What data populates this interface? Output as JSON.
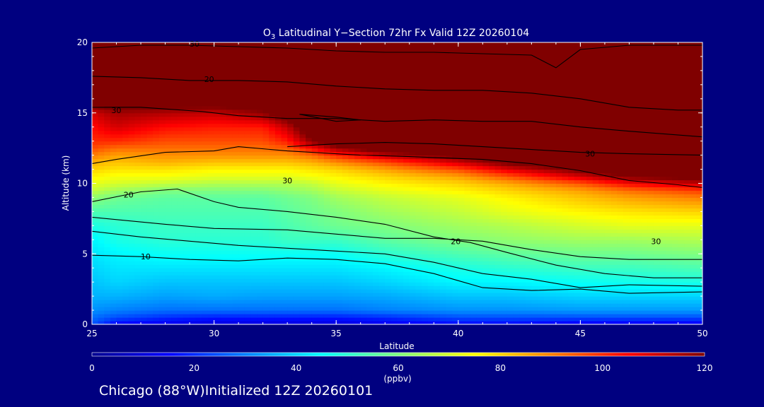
{
  "chart_data": {
    "type": "heatmap",
    "title": "Latitudinal Y−Section 72hr  Fx Valid 12Z 20260104",
    "title_species": "O",
    "title_subscript": "3",
    "xlabel": "Latitude",
    "ylabel": "Altitude (km)",
    "xlim": [
      25,
      50
    ],
    "ylim": [
      0,
      20
    ],
    "x_ticks": [
      25,
      30,
      35,
      40,
      45,
      50
    ],
    "y_ticks": [
      0,
      5,
      10,
      15,
      20
    ],
    "colorbar": {
      "range": [
        0,
        120
      ],
      "ticks": [
        0,
        20,
        40,
        60,
        80,
        100,
        120
      ],
      "unit": "(ppbv)",
      "colormap": "rainbow: dark blue → cyan → green → yellow → red → dark red"
    },
    "grid": false,
    "field": {
      "lat": [
        25,
        26,
        28,
        30,
        32,
        33,
        34,
        35,
        37,
        40,
        42,
        45,
        47,
        50
      ],
      "alt": [
        0,
        0.5,
        1,
        2,
        3,
        4,
        5,
        6,
        7,
        8,
        9,
        9.5,
        10,
        10.5,
        11,
        11.5,
        12,
        12.5,
        13,
        14,
        15,
        16,
        20
      ],
      "values_ppbv": [
        [
          25,
          14,
          12,
          10,
          10,
          10,
          10,
          10,
          12,
          15,
          15,
          12,
          12,
          12
        ],
        [
          28,
          24,
          20,
          18,
          18,
          18,
          18,
          18,
          20,
          24,
          24,
          24,
          24,
          24
        ],
        [
          32,
          30,
          28,
          28,
          28,
          28,
          28,
          28,
          30,
          32,
          32,
          33,
          33,
          33
        ],
        [
          36,
          36,
          34,
          35,
          34,
          34,
          34,
          34,
          35,
          38,
          38,
          40,
          40,
          40
        ],
        [
          38,
          40,
          38,
          38,
          38,
          38,
          38,
          38,
          40,
          44,
          44,
          46,
          47,
          48
        ],
        [
          40,
          42,
          42,
          42,
          42,
          42,
          42,
          42,
          44,
          48,
          50,
          52,
          52,
          54
        ],
        [
          42,
          44,
          46,
          46,
          46,
          46,
          46,
          46,
          50,
          54,
          56,
          58,
          58,
          60
        ],
        [
          44,
          48,
          50,
          50,
          50,
          52,
          52,
          52,
          56,
          60,
          62,
          64,
          64,
          66
        ],
        [
          48,
          50,
          52,
          52,
          52,
          54,
          56,
          58,
          60,
          64,
          66,
          70,
          72,
          72
        ],
        [
          54,
          54,
          54,
          54,
          54,
          56,
          58,
          60,
          64,
          68,
          72,
          76,
          78,
          80
        ],
        [
          62,
          58,
          56,
          56,
          56,
          58,
          60,
          64,
          68,
          72,
          76,
          82,
          86,
          90
        ],
        [
          68,
          64,
          60,
          60,
          60,
          62,
          64,
          68,
          72,
          76,
          80,
          86,
          92,
          98
        ],
        [
          72,
          70,
          68,
          66,
          66,
          66,
          68,
          72,
          76,
          80,
          85,
          95,
          105,
          112
        ],
        [
          76,
          74,
          74,
          72,
          72,
          72,
          74,
          76,
          80,
          86,
          95,
          110,
          120,
          125
        ],
        [
          80,
          78,
          78,
          76,
          76,
          76,
          78,
          80,
          86,
          96,
          108,
          122,
          130,
          130
        ],
        [
          84,
          82,
          84,
          82,
          82,
          82,
          84,
          88,
          96,
          110,
          122,
          130,
          130,
          130
        ],
        [
          90,
          86,
          88,
          88,
          88,
          88,
          92,
          100,
          112,
          124,
          130,
          130,
          130,
          130
        ],
        [
          96,
          92,
          92,
          92,
          92,
          94,
          104,
          116,
          128,
          130,
          130,
          130,
          130,
          130
        ],
        [
          100,
          100,
          96,
          96,
          96,
          102,
          118,
          130,
          130,
          130,
          130,
          130,
          130,
          130
        ],
        [
          104,
          110,
          104,
          102,
          102,
          112,
          130,
          130,
          130,
          130,
          130,
          130,
          130,
          130
        ],
        [
          110,
          116,
          114,
          112,
          118,
          128,
          130,
          130,
          130,
          130,
          130,
          130,
          130,
          130
        ],
        [
          130,
          130,
          130,
          130,
          130,
          130,
          130,
          130,
          130,
          130,
          130,
          130,
          130,
          130
        ],
        [
          130,
          130,
          130,
          130,
          130,
          130,
          130,
          130,
          130,
          130,
          130,
          130,
          130,
          130
        ]
      ]
    },
    "contours": [
      {
        "label": "10",
        "label_at": [
          27.2,
          4.8
        ],
        "points": [
          [
            25,
            4.9
          ],
          [
            27,
            4.8
          ],
          [
            29,
            4.6
          ],
          [
            31,
            4.5
          ],
          [
            33,
            4.7
          ],
          [
            35,
            4.6
          ],
          [
            37,
            4.3
          ],
          [
            39,
            3.6
          ],
          [
            40,
            3.1
          ],
          [
            41,
            2.6
          ],
          [
            43,
            2.4
          ],
          [
            45,
            2.5
          ],
          [
            47,
            2.2
          ],
          [
            50,
            2.3
          ]
        ]
      },
      {
        "label": "20",
        "label_at": [
          26.5,
          9.2
        ],
        "points": [
          [
            25,
            8.7
          ],
          [
            27,
            9.4
          ],
          [
            28.5,
            9.6
          ],
          [
            30,
            8.7
          ],
          [
            31,
            8.3
          ],
          [
            33,
            8.0
          ],
          [
            35,
            7.6
          ],
          [
            37,
            7.1
          ],
          [
            39,
            6.2
          ],
          [
            40.5,
            5.8
          ],
          [
            42,
            5.1
          ],
          [
            44,
            4.2
          ],
          [
            46,
            3.6
          ],
          [
            48,
            3.3
          ],
          [
            50,
            3.3
          ]
        ]
      },
      {
        "label": "30",
        "label_at": [
          33.0,
          10.2
        ],
        "points": [
          [
            25,
            11.4
          ],
          [
            26,
            11.7
          ],
          [
            28,
            12.2
          ],
          [
            30,
            12.3
          ],
          [
            31,
            12.6
          ],
          [
            33,
            12.3
          ],
          [
            36,
            12.0
          ],
          [
            38,
            11.9
          ],
          [
            41,
            11.7
          ],
          [
            43,
            11.4
          ],
          [
            45,
            10.9
          ],
          [
            47,
            10.2
          ],
          [
            49,
            9.9
          ],
          [
            50,
            9.7
          ]
        ]
      },
      {
        "label": "30",
        "label_at": [
          48.1,
          5.9
        ],
        "points": [
          [
            25,
            7.6
          ],
          [
            28,
            7.1
          ],
          [
            30,
            6.8
          ],
          [
            33,
            6.7
          ],
          [
            35,
            6.4
          ],
          [
            37,
            6.1
          ],
          [
            39,
            6.1
          ],
          [
            41,
            5.9
          ],
          [
            43,
            5.3
          ],
          [
            45,
            4.8
          ],
          [
            47,
            4.6
          ],
          [
            50,
            4.6
          ]
        ]
      },
      {
        "label": "20",
        "label_at": [
          39.9,
          5.9
        ],
        "points": [
          [
            25,
            6.6
          ],
          [
            27,
            6.2
          ],
          [
            29,
            5.9
          ],
          [
            31,
            5.6
          ],
          [
            33,
            5.4
          ],
          [
            35,
            5.2
          ],
          [
            37,
            5.0
          ],
          [
            39,
            4.4
          ],
          [
            40,
            4.0
          ],
          [
            41,
            3.6
          ],
          [
            43,
            3.2
          ],
          [
            45,
            2.6
          ],
          [
            47,
            2.8
          ],
          [
            50,
            2.7
          ]
        ]
      },
      {
        "label": "30",
        "label_at": [
          26.0,
          15.2
        ],
        "points": [
          [
            25,
            15.4
          ],
          [
            27,
            15.4
          ],
          [
            29.5,
            15.1
          ],
          [
            31,
            14.8
          ],
          [
            33,
            14.6
          ],
          [
            35,
            14.6
          ],
          [
            37,
            14.4
          ],
          [
            39,
            14.5
          ],
          [
            41,
            14.4
          ],
          [
            43,
            14.4
          ],
          [
            45,
            14.0
          ],
          [
            47,
            13.7
          ],
          [
            50,
            13.3
          ]
        ]
      },
      {
        "label": "20",
        "label_at": [
          29.8,
          17.4
        ],
        "points": [
          [
            25,
            17.6
          ],
          [
            27,
            17.5
          ],
          [
            29,
            17.3
          ],
          [
            31,
            17.3
          ],
          [
            33,
            17.2
          ],
          [
            35,
            16.9
          ],
          [
            37,
            16.7
          ],
          [
            39,
            16.6
          ],
          [
            41,
            16.6
          ],
          [
            43,
            16.4
          ],
          [
            45,
            16.0
          ],
          [
            47,
            15.4
          ],
          [
            49,
            15.2
          ],
          [
            50,
            15.2
          ]
        ]
      },
      {
        "label": "30",
        "label_at": [
          29.2,
          19.9
        ],
        "points": [
          [
            25,
            19.6
          ],
          [
            27,
            19.8
          ],
          [
            29,
            19.8
          ],
          [
            31,
            19.7
          ],
          [
            33,
            19.6
          ],
          [
            35,
            19.4
          ],
          [
            37,
            19.3
          ],
          [
            39,
            19.3
          ],
          [
            41,
            19.2
          ],
          [
            43,
            19.1
          ],
          [
            44,
            18.2
          ],
          [
            45,
            19.5
          ],
          [
            47,
            19.8
          ],
          [
            49,
            19.8
          ],
          [
            50,
            19.8
          ]
        ]
      },
      {
        "label": "30",
        "label_at": [
          45.4,
          12.1
        ],
        "points": [
          [
            33,
            12.6
          ],
          [
            35,
            12.8
          ],
          [
            37,
            12.9
          ],
          [
            39,
            12.8
          ],
          [
            41,
            12.6
          ],
          [
            43,
            12.4
          ],
          [
            45,
            12.2
          ],
          [
            47,
            12.1
          ],
          [
            50,
            12.0
          ]
        ]
      },
      {
        "label": "",
        "label_at": null,
        "points": [
          [
            33.5,
            14.9
          ],
          [
            35,
            14.7
          ],
          [
            36,
            14.5
          ],
          [
            35,
            14.4
          ],
          [
            33.5,
            14.9
          ]
        ]
      }
    ]
  },
  "footer": "Chicago (88°W)Initialized 12Z 20260101"
}
